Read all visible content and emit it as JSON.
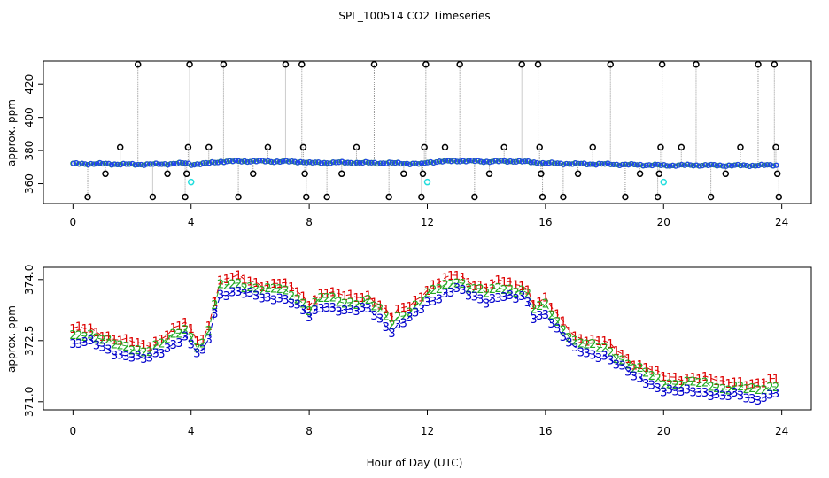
{
  "chart_data": [
    {
      "type": "line",
      "panel": "top",
      "title": "SPL_100514  CO2 Timeseries",
      "xlabel": "",
      "ylabel": "approx. ppm",
      "xlim": [
        -1,
        25
      ],
      "ylim": [
        348,
        434
      ],
      "xticks": [
        0,
        4,
        8,
        12,
        16,
        20,
        24
      ],
      "yticks": [
        360,
        380,
        400,
        420
      ],
      "baseline": [
        {
          "x": 0.0,
          "y": 372
        },
        {
          "x": 1.0,
          "y": 372
        },
        {
          "x": 2.0,
          "y": 371.6
        },
        {
          "x": 3.0,
          "y": 371.8
        },
        {
          "x": 3.8,
          "y": 372.4
        },
        {
          "x": 4.0,
          "y": 371.6
        },
        {
          "x": 4.6,
          "y": 372.4
        },
        {
          "x": 5.0,
          "y": 373.4
        },
        {
          "x": 6.0,
          "y": 373.6
        },
        {
          "x": 7.0,
          "y": 373.4
        },
        {
          "x": 7.8,
          "y": 373.2
        },
        {
          "x": 8.0,
          "y": 372.6
        },
        {
          "x": 9.0,
          "y": 372.8
        },
        {
          "x": 10.0,
          "y": 372.6
        },
        {
          "x": 11.0,
          "y": 372.4
        },
        {
          "x": 11.8,
          "y": 371.8
        },
        {
          "x": 12.0,
          "y": 373.0
        },
        {
          "x": 13.0,
          "y": 373.8
        },
        {
          "x": 14.0,
          "y": 373.4
        },
        {
          "x": 15.0,
          "y": 373.6
        },
        {
          "x": 15.5,
          "y": 373.0
        },
        {
          "x": 16.0,
          "y": 372.4
        },
        {
          "x": 17.0,
          "y": 372.0
        },
        {
          "x": 18.0,
          "y": 371.8
        },
        {
          "x": 19.0,
          "y": 371.4
        },
        {
          "x": 19.8,
          "y": 371.2
        },
        {
          "x": 20.0,
          "y": 371.0
        },
        {
          "x": 21.0,
          "y": 371.2
        },
        {
          "x": 22.0,
          "y": 371.0
        },
        {
          "x": 23.0,
          "y": 371.0
        },
        {
          "x": 23.8,
          "y": 371.2
        }
      ],
      "spikes": [
        {
          "x": 0.5,
          "y": 352
        },
        {
          "x": 1.1,
          "y": 366
        },
        {
          "x": 1.6,
          "y": 382
        },
        {
          "x": 2.2,
          "y": 432
        },
        {
          "x": 2.7,
          "y": 352
        },
        {
          "x": 3.2,
          "y": 366
        },
        {
          "x": 3.8,
          "y": 352
        },
        {
          "x": 3.85,
          "y": 366
        },
        {
          "x": 3.9,
          "y": 382
        },
        {
          "x": 3.95,
          "y": 432
        },
        {
          "x": 4.6,
          "y": 382
        },
        {
          "x": 5.1,
          "y": 432
        },
        {
          "x": 5.6,
          "y": 352
        },
        {
          "x": 6.1,
          "y": 366
        },
        {
          "x": 6.6,
          "y": 382
        },
        {
          "x": 7.2,
          "y": 432
        },
        {
          "x": 7.75,
          "y": 432
        },
        {
          "x": 7.8,
          "y": 382
        },
        {
          "x": 7.85,
          "y": 366
        },
        {
          "x": 7.9,
          "y": 352
        },
        {
          "x": 8.6,
          "y": 352
        },
        {
          "x": 9.1,
          "y": 366
        },
        {
          "x": 9.6,
          "y": 382
        },
        {
          "x": 10.2,
          "y": 432
        },
        {
          "x": 10.7,
          "y": 352
        },
        {
          "x": 11.2,
          "y": 366
        },
        {
          "x": 11.8,
          "y": 352
        },
        {
          "x": 11.85,
          "y": 366
        },
        {
          "x": 11.9,
          "y": 382
        },
        {
          "x": 11.95,
          "y": 432
        },
        {
          "x": 12.6,
          "y": 382
        },
        {
          "x": 13.1,
          "y": 432
        },
        {
          "x": 13.6,
          "y": 352
        },
        {
          "x": 14.1,
          "y": 366
        },
        {
          "x": 14.6,
          "y": 382
        },
        {
          "x": 15.2,
          "y": 432
        },
        {
          "x": 15.75,
          "y": 432
        },
        {
          "x": 15.8,
          "y": 382
        },
        {
          "x": 15.85,
          "y": 366
        },
        {
          "x": 15.9,
          "y": 352
        },
        {
          "x": 16.6,
          "y": 352
        },
        {
          "x": 17.1,
          "y": 366
        },
        {
          "x": 17.6,
          "y": 382
        },
        {
          "x": 18.2,
          "y": 432
        },
        {
          "x": 18.7,
          "y": 352
        },
        {
          "x": 19.2,
          "y": 366
        },
        {
          "x": 19.8,
          "y": 352
        },
        {
          "x": 19.85,
          "y": 366
        },
        {
          "x": 19.9,
          "y": 382
        },
        {
          "x": 19.95,
          "y": 432
        },
        {
          "x": 20.6,
          "y": 382
        },
        {
          "x": 21.1,
          "y": 432
        },
        {
          "x": 21.6,
          "y": 352
        },
        {
          "x": 22.1,
          "y": 366
        },
        {
          "x": 22.6,
          "y": 382
        },
        {
          "x": 23.2,
          "y": 432
        },
        {
          "x": 23.75,
          "y": 432
        },
        {
          "x": 23.8,
          "y": 382
        },
        {
          "x": 23.85,
          "y": 366
        },
        {
          "x": 23.9,
          "y": 352
        }
      ],
      "cyan_points": [
        {
          "x": 4.0,
          "y": 361
        },
        {
          "x": 12.0,
          "y": 361
        },
        {
          "x": 20.0,
          "y": 361
        }
      ],
      "colors": {
        "baseline": "#2244ee",
        "spike": "#000000",
        "line": "#999999",
        "cyan": "#22dddd",
        "green": "#22aa22"
      }
    },
    {
      "type": "line",
      "panel": "bottom",
      "title": "",
      "xlabel": "Hour of Day (UTC)",
      "ylabel": "approx. ppm",
      "xlim": [
        -1,
        25
      ],
      "ylim": [
        370.8,
        374.3
      ],
      "xticks": [
        0,
        4,
        8,
        12,
        16,
        20,
        24
      ],
      "yticks": [
        371.0,
        372.5,
        374.0
      ],
      "ytick_labels": [
        "371.0",
        "372.5",
        "374.0"
      ],
      "series": [
        {
          "name": "1",
          "color": "#dd0000",
          "offset": 0.22
        },
        {
          "name": "2",
          "color": "#22aa22",
          "offset": 0.08
        },
        {
          "name": "3",
          "color": "#0000cc",
          "offset": -0.12
        }
      ],
      "base": [
        {
          "x": 0.0,
          "y": 372.55
        },
        {
          "x": 0.5,
          "y": 372.6
        },
        {
          "x": 1.0,
          "y": 372.45
        },
        {
          "x": 1.5,
          "y": 372.3
        },
        {
          "x": 2.0,
          "y": 372.25
        },
        {
          "x": 2.5,
          "y": 372.15
        },
        {
          "x": 3.0,
          "y": 372.35
        },
        {
          "x": 3.5,
          "y": 372.6
        },
        {
          "x": 3.9,
          "y": 372.75
        },
        {
          "x": 4.1,
          "y": 372.3
        },
        {
          "x": 4.5,
          "y": 372.35
        },
        {
          "x": 4.8,
          "y": 373.3
        },
        {
          "x": 5.0,
          "y": 373.75
        },
        {
          "x": 5.5,
          "y": 373.85
        },
        {
          "x": 6.0,
          "y": 373.75
        },
        {
          "x": 6.5,
          "y": 373.65
        },
        {
          "x": 7.0,
          "y": 373.7
        },
        {
          "x": 7.5,
          "y": 373.55
        },
        {
          "x": 8.0,
          "y": 373.2
        },
        {
          "x": 8.5,
          "y": 373.5
        },
        {
          "x": 9.0,
          "y": 373.4
        },
        {
          "x": 9.5,
          "y": 373.35
        },
        {
          "x": 10.0,
          "y": 373.4
        },
        {
          "x": 10.5,
          "y": 373.1
        },
        {
          "x": 10.8,
          "y": 372.85
        },
        {
          "x": 11.0,
          "y": 373.0
        },
        {
          "x": 11.5,
          "y": 373.2
        },
        {
          "x": 12.0,
          "y": 373.55
        },
        {
          "x": 12.5,
          "y": 373.75
        },
        {
          "x": 13.0,
          "y": 373.9
        },
        {
          "x": 13.5,
          "y": 373.7
        },
        {
          "x": 14.0,
          "y": 373.6
        },
        {
          "x": 14.5,
          "y": 373.75
        },
        {
          "x": 15.0,
          "y": 373.65
        },
        {
          "x": 15.3,
          "y": 373.7
        },
        {
          "x": 15.6,
          "y": 373.2
        },
        {
          "x": 16.0,
          "y": 373.3
        },
        {
          "x": 16.5,
          "y": 372.8
        },
        {
          "x": 17.0,
          "y": 372.4
        },
        {
          "x": 17.5,
          "y": 372.3
        },
        {
          "x": 18.0,
          "y": 372.25
        },
        {
          "x": 18.5,
          "y": 372.0
        },
        {
          "x": 19.0,
          "y": 371.75
        },
        {
          "x": 19.5,
          "y": 371.6
        },
        {
          "x": 20.0,
          "y": 371.4
        },
        {
          "x": 20.5,
          "y": 371.35
        },
        {
          "x": 21.0,
          "y": 371.4
        },
        {
          "x": 21.5,
          "y": 371.35
        },
        {
          "x": 22.0,
          "y": 371.25
        },
        {
          "x": 22.5,
          "y": 371.3
        },
        {
          "x": 23.0,
          "y": 371.2
        },
        {
          "x": 23.5,
          "y": 371.25
        },
        {
          "x": 23.8,
          "y": 371.35
        }
      ]
    }
  ]
}
